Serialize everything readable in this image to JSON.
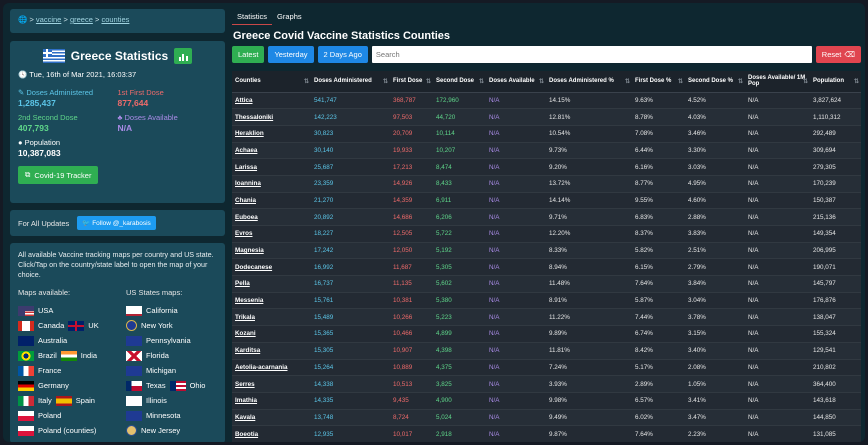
{
  "breadcrumb": [
    "vaccine",
    "greece",
    "counties"
  ],
  "stats": {
    "title": "Greece Statistics",
    "date": "Tue, 16th of Mar 2021, 16:03:37",
    "doses_administered_label": "Doses Administered",
    "doses_administered": "1,285,437",
    "first_dose_label": "1st First Dose",
    "first_dose": "877,644",
    "second_dose_label": "2nd Second Dose",
    "second_dose": "407,793",
    "doses_available_label": "Doses Available",
    "doses_available": "N/A",
    "population_label": "Population",
    "population": "10,387,083",
    "tracker_label": "Covid-19 Tracker"
  },
  "updates": {
    "label": "For All Updates",
    "twitter_label": "Follow @_karabosis"
  },
  "maps": {
    "description": "All available Vaccine tracking maps per country and US state. Click/Tap on the country/state label to open the map of your choice.",
    "countries_heading": "Maps available:",
    "states_heading": "US States maps:",
    "countries": [
      {
        "label": "USA",
        "flag": "us-flag"
      },
      {
        "label": "Canada",
        "flag": "canada-flag",
        "extra": "UK",
        "extra_flag": "uk-flag"
      },
      {
        "label": "Australia",
        "flag": "australia-flag"
      },
      {
        "label": "Brazil",
        "flag": "brazil-flag",
        "extra": "India",
        "extra_flag": "india-flag"
      },
      {
        "label": "France",
        "flag": "france-flag"
      },
      {
        "label": "Germany",
        "flag": "germany-flag"
      },
      {
        "label": "Italy",
        "flag": "italy-flag",
        "extra": "Spain",
        "extra_flag": "spain-flag"
      },
      {
        "label": "Poland",
        "flag": "poland-flag"
      },
      {
        "label": "Poland (counties)",
        "flag": "poland-flag"
      }
    ],
    "states": [
      {
        "label": "California",
        "flag": "california-flag"
      },
      {
        "label": "New York",
        "flag": "new-york-flag"
      },
      {
        "label": "Pennsylvania",
        "flag": "pennsylvania-flag"
      },
      {
        "label": "Florida",
        "flag": "florida-flag"
      },
      {
        "label": "Michigan",
        "flag": "michigan-flag"
      },
      {
        "label": "Texas",
        "flag": "texas-flag",
        "extra": "Ohio",
        "extra_flag": "ohio-flag"
      },
      {
        "label": "Illinois",
        "flag": "illinois-flag"
      },
      {
        "label": "Minnesota",
        "flag": "minnesota-flag"
      },
      {
        "label": "New Jersey",
        "flag": "new-jersey-flag"
      }
    ]
  },
  "tabs": [
    "Statistics",
    "Graphs"
  ],
  "page_title": "Greece Covid Vaccine Statistics Counties",
  "toolbar": {
    "latest": "Latest",
    "yesterday": "Yesterday",
    "two_days": "2 Days Ago",
    "search_placeholder": "Search",
    "reset": "Reset"
  },
  "table": {
    "columns": [
      "Counties",
      "Doses Administered",
      "First Dose",
      "Second Dose",
      "Doses Available",
      "Doses Administered %",
      "First Dose %",
      "Second Dose %",
      "Doses Available/ 1M Pop",
      "Population"
    ],
    "rows": [
      [
        "Attica",
        "541,747",
        "368,787",
        "172,960",
        "N/A",
        "14.15%",
        "9.63%",
        "4.52%",
        "N/A",
        "3,827,624"
      ],
      [
        "Thessaloniki",
        "142,223",
        "97,503",
        "44,720",
        "N/A",
        "12.81%",
        "8.78%",
        "4.03%",
        "N/A",
        "1,110,312"
      ],
      [
        "Heraklion",
        "30,823",
        "20,709",
        "10,114",
        "N/A",
        "10.54%",
        "7.08%",
        "3.46%",
        "N/A",
        "292,489"
      ],
      [
        "Achaea",
        "30,140",
        "19,933",
        "10,207",
        "N/A",
        "9.73%",
        "6.44%",
        "3.30%",
        "N/A",
        "309,694"
      ],
      [
        "Larissa",
        "25,687",
        "17,213",
        "8,474",
        "N/A",
        "9.20%",
        "6.16%",
        "3.03%",
        "N/A",
        "279,305"
      ],
      [
        "Ioannina",
        "23,359",
        "14,926",
        "8,433",
        "N/A",
        "13.72%",
        "8.77%",
        "4.95%",
        "N/A",
        "170,239"
      ],
      [
        "Chania",
        "21,270",
        "14,359",
        "6,911",
        "N/A",
        "14.14%",
        "9.55%",
        "4.60%",
        "N/A",
        "150,387"
      ],
      [
        "Euboea",
        "20,892",
        "14,686",
        "6,206",
        "N/A",
        "9.71%",
        "6.83%",
        "2.88%",
        "N/A",
        "215,136"
      ],
      [
        "Evros",
        "18,227",
        "12,505",
        "5,722",
        "N/A",
        "12.20%",
        "8.37%",
        "3.83%",
        "N/A",
        "149,354"
      ],
      [
        "Magnesia",
        "17,242",
        "12,050",
        "5,192",
        "N/A",
        "8.33%",
        "5.82%",
        "2.51%",
        "N/A",
        "206,995"
      ],
      [
        "Dodecanese",
        "16,992",
        "11,687",
        "5,305",
        "N/A",
        "8.94%",
        "6.15%",
        "2.79%",
        "N/A",
        "190,071"
      ],
      [
        "Pella",
        "16,737",
        "11,135",
        "5,602",
        "N/A",
        "11.48%",
        "7.64%",
        "3.84%",
        "N/A",
        "145,797"
      ],
      [
        "Messenia",
        "15,761",
        "10,381",
        "5,380",
        "N/A",
        "8.91%",
        "5.87%",
        "3.04%",
        "N/A",
        "176,876"
      ],
      [
        "Trikala",
        "15,489",
        "10,266",
        "5,223",
        "N/A",
        "11.22%",
        "7.44%",
        "3.78%",
        "N/A",
        "138,047"
      ],
      [
        "Kozani",
        "15,365",
        "10,466",
        "4,899",
        "N/A",
        "9.89%",
        "6.74%",
        "3.15%",
        "N/A",
        "155,324"
      ],
      [
        "Karditsa",
        "15,305",
        "10,907",
        "4,398",
        "N/A",
        "11.81%",
        "8.42%",
        "3.40%",
        "N/A",
        "129,541"
      ],
      [
        "Aetolia-acarnania",
        "15,264",
        "10,889",
        "4,375",
        "N/A",
        "7.24%",
        "5.17%",
        "2.08%",
        "N/A",
        "210,802"
      ],
      [
        "Serres",
        "14,338",
        "10,513",
        "3,825",
        "N/A",
        "3.93%",
        "2.89%",
        "1.05%",
        "N/A",
        "364,400"
      ],
      [
        "Imathia",
        "14,335",
        "9,435",
        "4,900",
        "N/A",
        "9.98%",
        "6.57%",
        "3.41%",
        "N/A",
        "143,618"
      ],
      [
        "Kavala",
        "13,748",
        "8,724",
        "5,024",
        "N/A",
        "9.49%",
        "6.02%",
        "3.47%",
        "N/A",
        "144,850"
      ],
      [
        "Boeotia",
        "12,935",
        "10,017",
        "2,918",
        "N/A",
        "9.87%",
        "7.64%",
        "2.23%",
        "N/A",
        "131,085"
      ]
    ]
  }
}
